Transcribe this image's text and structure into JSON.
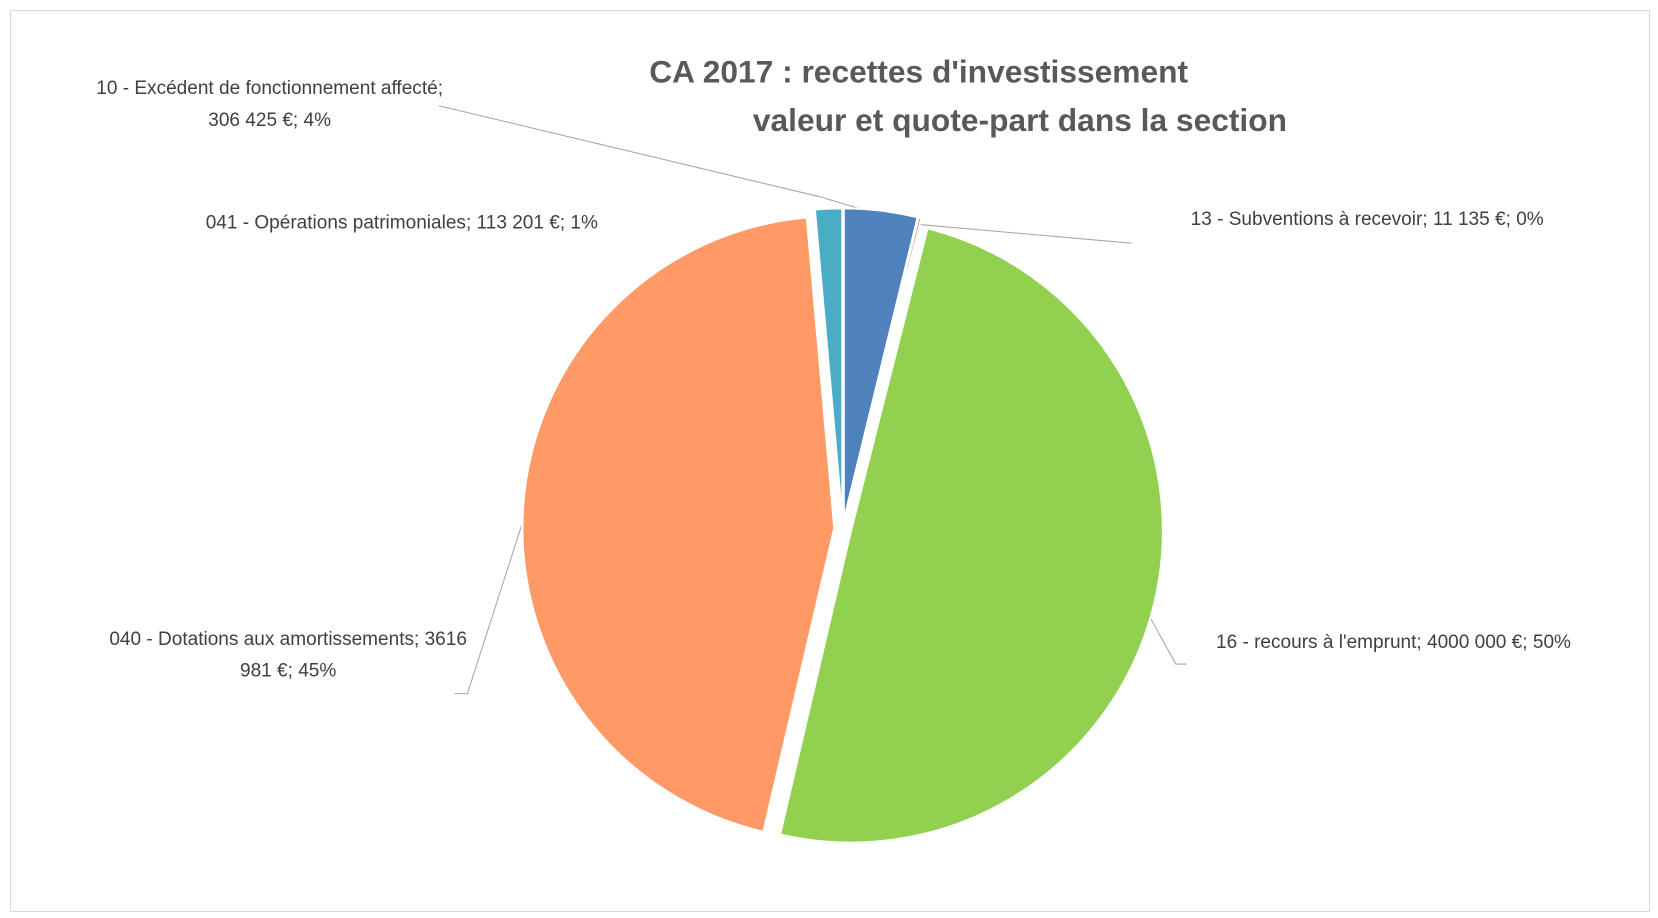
{
  "chart_data": {
    "type": "pie",
    "title": "CA 2017 : recettes d'investissement",
    "subtitle": "valeur et quote-part dans la section",
    "categories": [
      "10 - Excédent de fonctionnement affecté",
      "13 - Subventions à recevoir",
      "16 - recours à l'emprunt",
      "040 - Dotations aux amortissements",
      "041 - Opérations patrimoniales"
    ],
    "values": [
      306425,
      11135,
      4000000,
      3616981,
      113201
    ],
    "value_labels": [
      "306 425 €",
      "11 135 €",
      "4000 000 €",
      "3616 981 €",
      "113 201 €"
    ],
    "percent_labels": [
      "4%",
      "0%",
      "50%",
      "45%",
      "1%"
    ],
    "label_separator": "; ",
    "colors": [
      "#4f81bd",
      "#c0504d",
      "#92d050",
      "#ff9966",
      "#4bacc6"
    ]
  }
}
